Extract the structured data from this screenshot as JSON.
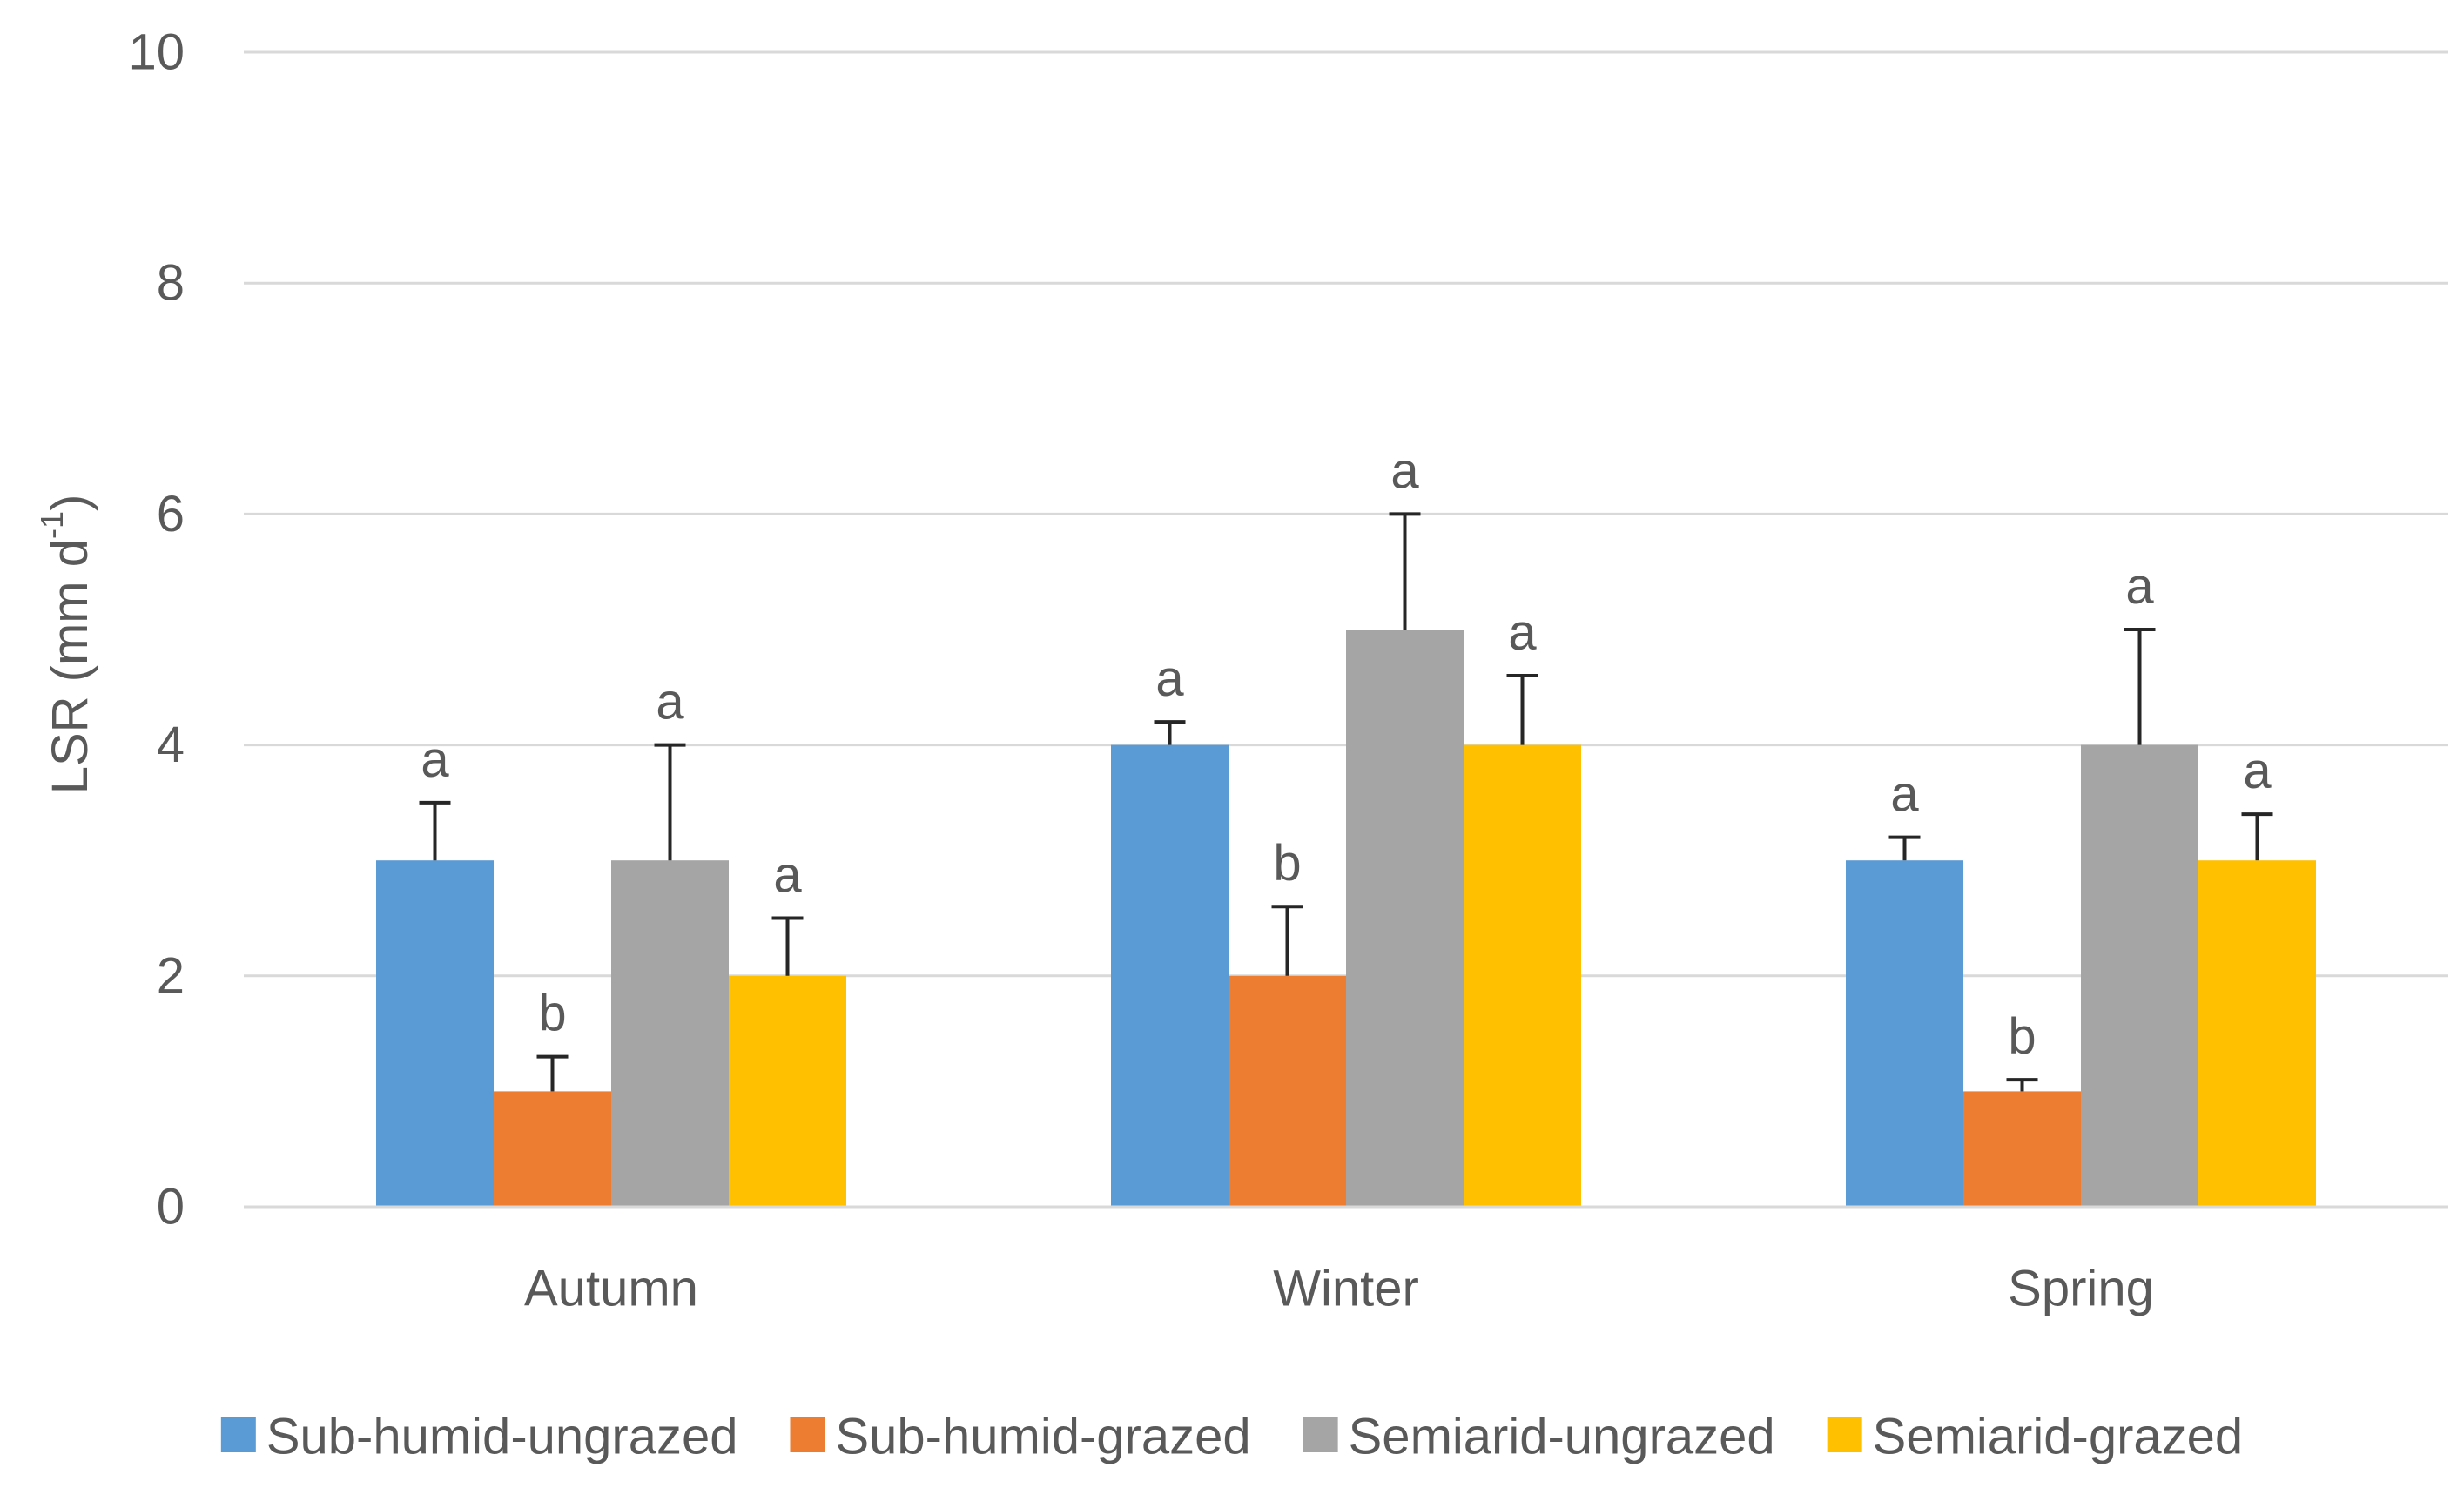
{
  "chart_data": {
    "type": "bar",
    "y_label": "LSR (mm d",
    "y_label_sup": "-1",
    "y_label_end": ")",
    "categories": [
      "Autumn",
      "Winter",
      "Spring"
    ],
    "series": [
      {
        "name": "Sub-humid-ungrazed",
        "color": "#5b9bd5",
        "values": [
          3,
          4,
          3
        ],
        "errors": [
          0.5,
          0.2,
          0.2
        ],
        "letters": [
          "a",
          "a",
          "a"
        ]
      },
      {
        "name": "Sub-humid-grazed",
        "color": "#ed7d31",
        "values": [
          1,
          2,
          1
        ],
        "errors": [
          0.3,
          0.6,
          0.1
        ],
        "letters": [
          "b",
          "b",
          "b"
        ]
      },
      {
        "name": "Semiarid-ungrazed",
        "color": "#a5a5a5",
        "values": [
          3,
          5,
          4
        ],
        "errors": [
          1.0,
          1.0,
          1.0
        ],
        "letters": [
          "a",
          "a",
          "a"
        ]
      },
      {
        "name": "Semiarid-grazed",
        "color": "#ffc000",
        "values": [
          2,
          4,
          3
        ],
        "errors": [
          0.5,
          0.6,
          0.4
        ],
        "letters": [
          "a",
          "a",
          "a"
        ]
      }
    ],
    "ylim": [
      0,
      10
    ],
    "yticks": [
      0,
      2,
      4,
      6,
      8,
      10
    ],
    "grid": true,
    "legend": "bottom"
  }
}
